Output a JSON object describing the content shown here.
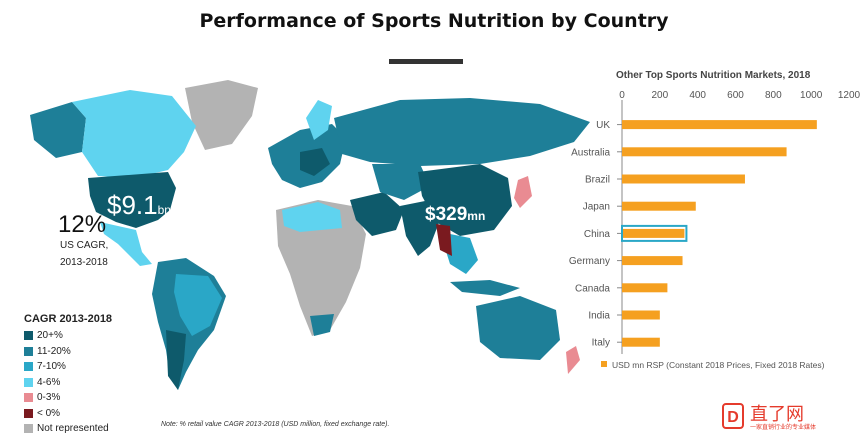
{
  "title": "Performance of Sports Nutrition by Country",
  "map": {
    "callout_us_value": "$9.1",
    "callout_us_unit": "bn",
    "callout_cn_value": "$329",
    "callout_cn_unit": "mn",
    "us_cagr_value": "12%",
    "us_cagr_label": "US CAGR,",
    "us_cagr_period": "2013-2018",
    "note": "Note: % retail value CAGR 2013-2018 (USD million, fixed exchange rate).",
    "legend": {
      "title": "CAGR 2013-2018",
      "items": [
        {
          "label": "20+%",
          "color": "#0e5a6b"
        },
        {
          "label": "11-20%",
          "color": "#1e7f98"
        },
        {
          "label": "7-10%",
          "color": "#2aa7c7"
        },
        {
          "label": "4-6%",
          "color": "#5fd3ef"
        },
        {
          "label": "0-3%",
          "color": "#e98b92"
        },
        {
          "label": "< 0%",
          "color": "#7a1a1f"
        },
        {
          "label": "Not represented",
          "color": "#b3b3b3"
        }
      ]
    }
  },
  "chart_data": {
    "type": "bar",
    "orientation": "horizontal",
    "title": "Other Top Sports Nutrition Markets, 2018",
    "categories": [
      "UK",
      "Australia",
      "Brazil",
      "Japan",
      "China",
      "Germany",
      "Canada",
      "India",
      "Italy"
    ],
    "values": [
      1030,
      870,
      650,
      390,
      330,
      320,
      240,
      200,
      200
    ],
    "xlim": [
      0,
      1200
    ],
    "xticks": [
      0,
      200,
      400,
      600,
      800,
      1000,
      1200
    ],
    "highlight": "China",
    "bar_color": "#f5a020",
    "highlight_color": "#2aa7c7",
    "legend": "USD mn RSP (Constant 2018 Prices, Fixed 2018 Rates)",
    "legend_placement": "bottom"
  },
  "watermark": {
    "logo_text": "D",
    "name": "直了网",
    "tagline": "一家直销行业的专业媒体"
  }
}
